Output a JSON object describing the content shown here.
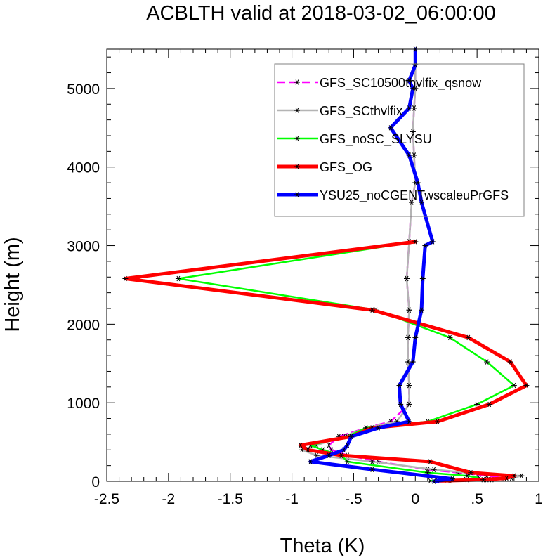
{
  "chart_data": {
    "type": "line",
    "title": "ACBLTH valid at 2018-03-02_06:00:00",
    "xlabel": "Theta (K)",
    "ylabel": "Height (m)",
    "xlim": [
      -2.5,
      1.0
    ],
    "ylim": [
      0,
      5500
    ],
    "xticks": [
      -2.5,
      -2.0,
      -1.5,
      -1.0,
      -0.5,
      0,
      0.5,
      1.0
    ],
    "xtick_labels": [
      "-2.5",
      "-2",
      "-1.5",
      "-1",
      "-.5",
      "0",
      ".5",
      "1"
    ],
    "yticks": [
      0,
      1000,
      2000,
      3000,
      4000,
      5000
    ],
    "ytick_labels": [
      "0",
      "1000",
      "2000",
      "3000",
      "4000",
      "5000"
    ],
    "legend_position": "top-right",
    "marker": "asterisk",
    "series": [
      {
        "name": "GFS_SC10500thvlfix_qsnow",
        "color": "#ff00ff",
        "dash": "dashed",
        "width": 2.5,
        "x": [
          0.25,
          0.58,
          0.72,
          0.58,
          0.35,
          0.1,
          -0.3,
          -0.55,
          -0.68,
          -0.7,
          -0.62,
          -0.4,
          -0.2,
          -0.05,
          -0.05,
          -0.06,
          -0.06,
          -0.05,
          -0.07,
          -0.05,
          -0.03,
          0.0,
          -0.01,
          -0.02,
          -0.01,
          0.0,
          0.0,
          0.0
        ],
        "y": [
          5,
          20,
          40,
          70,
          110,
          150,
          250,
          330,
          400,
          460,
          570,
          680,
          760,
          980,
          1220,
          1520,
          1830,
          2180,
          2580,
          3050,
          3550,
          3800,
          4150,
          4450,
          4750,
          5000,
          5300,
          5500
        ]
      },
      {
        "name": "GFS_SCthvlfix",
        "color": "#b4b4b4",
        "dash": "solid",
        "width": 2.5,
        "x": [
          0.28,
          0.62,
          0.78,
          0.86,
          0.42,
          0.15,
          -0.35,
          -0.8,
          -0.92,
          -0.8,
          -0.58,
          -0.4,
          -0.15,
          -0.05,
          -0.05,
          -0.06,
          -0.06,
          -0.05,
          -0.07,
          -0.05,
          -0.03,
          0.0,
          -0.01,
          -0.02,
          -0.01,
          0.0,
          0.0,
          0.0
        ],
        "y": [
          5,
          20,
          40,
          70,
          110,
          150,
          250,
          330,
          400,
          460,
          570,
          680,
          760,
          980,
          1220,
          1520,
          1830,
          2180,
          2580,
          3050,
          3550,
          3800,
          4150,
          4450,
          4750,
          5000,
          5300,
          5500
        ]
      },
      {
        "name": "GFS_noSC_SLYSU",
        "color": "#00ff00",
        "dash": "solid",
        "width": 2.5,
        "x": [
          0.12,
          0.42,
          0.52,
          0.42,
          0.1,
          -0.55,
          -0.6,
          -0.75,
          -0.85,
          -0.55,
          -0.4,
          0.1,
          0.5,
          0.8,
          0.58,
          0.28,
          -0.32,
          -1.92,
          0.0
        ],
        "y": [
          5,
          20,
          40,
          70,
          110,
          250,
          330,
          400,
          460,
          570,
          680,
          760,
          980,
          1220,
          1520,
          1830,
          2180,
          2580,
          3050
        ]
      },
      {
        "name": "GFS_OG",
        "color": "#ff0000",
        "dash": "solid",
        "width": 5,
        "x": [
          0.18,
          0.55,
          0.74,
          0.8,
          0.45,
          0.12,
          -0.6,
          -0.87,
          -0.93,
          -0.52,
          -0.35,
          0.18,
          0.6,
          0.9,
          0.77,
          0.43,
          -0.35,
          -2.35,
          0.0
        ],
        "y": [
          5,
          20,
          40,
          70,
          110,
          250,
          330,
          400,
          460,
          570,
          680,
          760,
          980,
          1220,
          1520,
          1830,
          2180,
          2580,
          3050
        ]
      },
      {
        "name": "YSU25_noCGENTwscaleuPrGFS",
        "color": "#0000ff",
        "dash": "solid",
        "width": 5,
        "x": [
          0.15,
          0.3,
          -0.35,
          -0.85,
          -0.7,
          -0.58,
          -0.55,
          -0.52,
          -0.3,
          -0.05,
          -0.12,
          -0.13,
          -0.02,
          0.0,
          0.05,
          0.06,
          0.08,
          0.14,
          0.05,
          0.02,
          -0.05,
          -0.2,
          -0.05,
          -0.02,
          -0.05,
          0.0,
          0.0
        ],
        "y": [
          0,
          30,
          150,
          250,
          330,
          400,
          460,
          570,
          680,
          760,
          980,
          1220,
          1520,
          1830,
          2180,
          2580,
          3000,
          3050,
          3550,
          3800,
          4150,
          4500,
          4750,
          5000,
          5100,
          5300,
          5500
        ]
      }
    ]
  }
}
